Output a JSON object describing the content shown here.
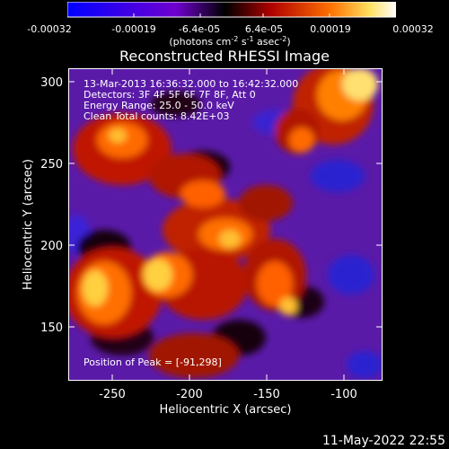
{
  "colorbar": {
    "tick_labels": [
      "-0.00032",
      "-0.00019",
      "-6.4e-05",
      "6.4e-05",
      "0.00019",
      "0.00032"
    ],
    "units_main": "(photons cm",
    "units_sup1": "-2",
    "units_mid": " s",
    "units_sup2": "-1",
    "units_end": " asec",
    "units_sup3": "-2",
    "units_close": ")",
    "colors": [
      "#0000ff",
      "#6a00d8",
      "#000000",
      "#b00000",
      "#ff6a00",
      "#ffffff"
    ]
  },
  "title": "Reconstructed RHESSI Image",
  "plot": {
    "info_lines": [
      "13-Mar-2013 16:36:32.000 to 16:42:32.000",
      "Detectors: 3F 4F 5F 6F 7F 8F, Att 0",
      "Energy Range: 25.0 - 50.0 keV",
      "Clean    Total counts: 8.42E+03"
    ],
    "peak_label": "Position of Peak = [-91,298]",
    "x_ticks": [
      "-250",
      "-200",
      "-150",
      "-100"
    ],
    "y_ticks": [
      "300",
      "250",
      "200",
      "150"
    ],
    "xlabel": "Heliocentric X (arcsec)",
    "ylabel": "Heliocentric Y (arcsec)",
    "x_range": [
      -278,
      -86
    ],
    "y_range": [
      113,
      310
    ],
    "colors": {
      "background_purple": "#5a1aa8",
      "blue": "#2a20d0",
      "dark": "#120010",
      "red": "#c01800",
      "orange": "#ff6a00",
      "yellow": "#ffd040"
    }
  },
  "timestamp": "11-May-2022 22:55"
}
